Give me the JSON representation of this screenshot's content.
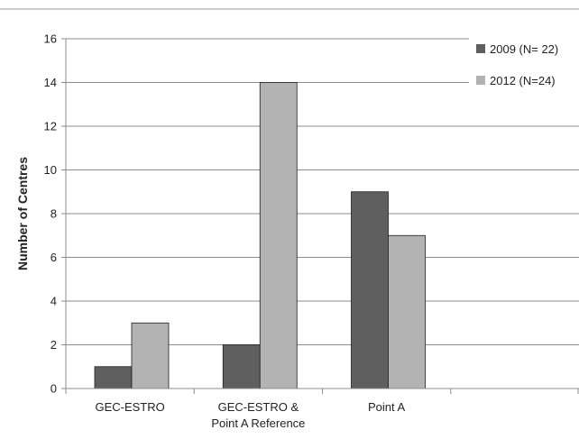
{
  "chart_data": {
    "type": "bar",
    "title": "",
    "xlabel": "",
    "ylabel": "Number of Centres",
    "ylim": [
      0,
      16
    ],
    "yticks": [
      0,
      2,
      4,
      6,
      8,
      10,
      12,
      14,
      16
    ],
    "grid": true,
    "legend_position": "top-right",
    "categories": [
      [
        "GEC-ESTRO"
      ],
      [
        "GEC-ESTRO &",
        "Point A Reference"
      ],
      [
        "Point A"
      ],
      [
        ""
      ]
    ],
    "series": [
      {
        "name": "2009 (N= 22)",
        "color": "#5f5f5f",
        "values": [
          1,
          2,
          9,
          null
        ]
      },
      {
        "name": "2012 (N=24)",
        "color": "#b3b3b3",
        "values": [
          3,
          14,
          7,
          null
        ]
      }
    ]
  }
}
